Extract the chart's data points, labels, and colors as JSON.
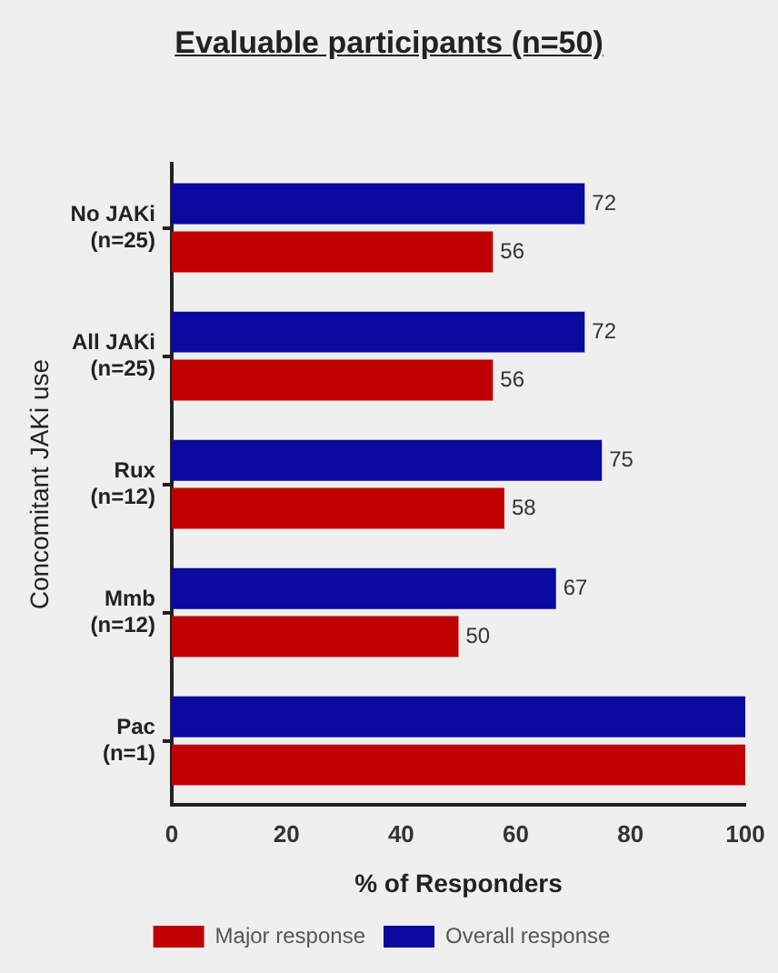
{
  "chart_data": {
    "type": "bar",
    "orientation": "horizontal",
    "title": "Evaluable participants (n=50)",
    "xlabel": "% of Responders",
    "ylabel": "Concomitant JAKi use",
    "categories": [
      "No JAKi\n(n=25)",
      "All JAKi\n(n=25)",
      "Rux\n(n=12)",
      "Mmb\n(n=12)",
      "Pac\n(n=1)"
    ],
    "series": [
      {
        "name": "Overall response",
        "color": "#0a0a9e",
        "values": [
          72,
          72,
          75,
          67,
          100
        ],
        "value_labels": [
          "72",
          "72",
          "75",
          "67",
          null
        ]
      },
      {
        "name": "Major response",
        "color": "#c00000",
        "values": [
          56,
          56,
          58,
          50,
          100
        ],
        "value_labels": [
          "56",
          "56",
          "58",
          "50",
          null
        ]
      }
    ],
    "xlim": [
      0,
      100
    ],
    "xticks": [
      0,
      20,
      40,
      60,
      80,
      100
    ],
    "grid": false,
    "legend": "bottom"
  }
}
